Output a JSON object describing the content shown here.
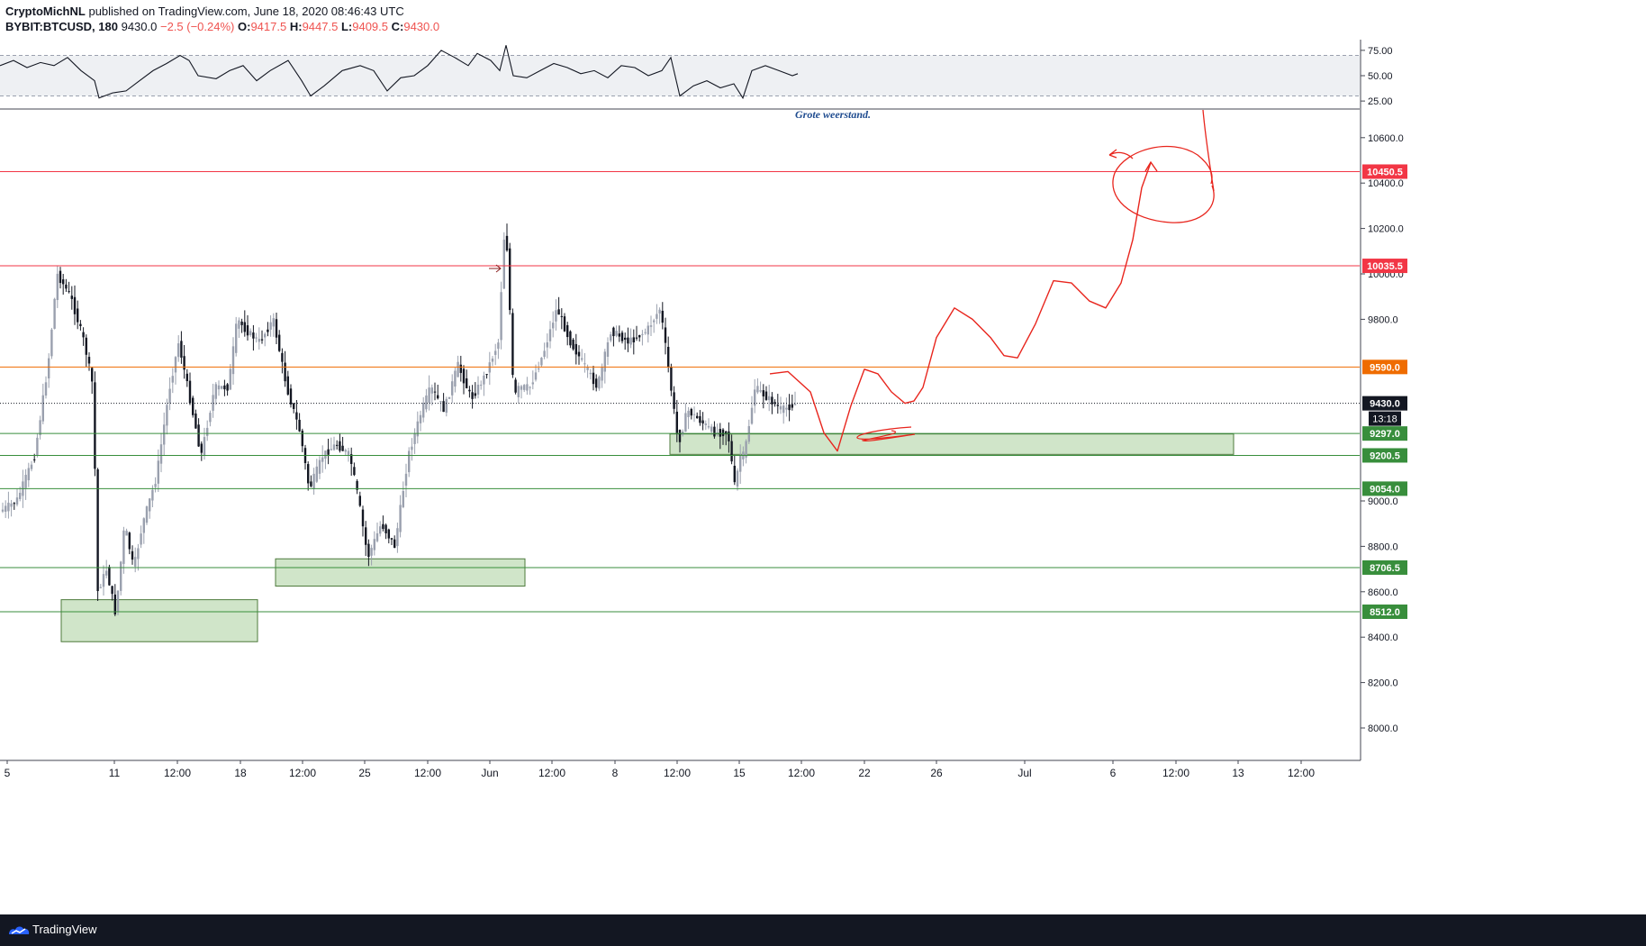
{
  "header": {
    "publisher": "CryptoMichNL",
    "published_text": "published on TradingView.com, June 18, 2020 08:46:43 UTC",
    "symbol": "BYBIT:BTCUSD, 180",
    "last": "9430.0",
    "change": "−2.5 (−0.24%)",
    "open_label": "O:",
    "open": "9417.5",
    "high_label": "H:",
    "high": "9447.5",
    "low_label": "L:",
    "low": "9409.5",
    "close_label": "C:",
    "close": "9430.0"
  },
  "footer": {
    "brand": "TradingView"
  },
  "colors": {
    "resistance": "#f23645",
    "support": "#388e3c",
    "pivot": "#ef6c00",
    "zone_fill": "#c8e0c0",
    "zone_stroke": "#4e7a3c",
    "drawing": "#e8251d",
    "annotation_text": "#1e4b8f",
    "candle_dark": "#131722",
    "candle_light": "#9aa0ae",
    "current_badge": "#131722"
  },
  "chart_data": [
    {
      "type": "line",
      "name": "RSI",
      "yticks": [
        25,
        50,
        75
      ],
      "ytick_labels": [
        "25.00",
        "50.00",
        "75.00"
      ],
      "band": [
        30,
        70
      ],
      "ylim": [
        18,
        82
      ],
      "x": [
        0,
        15,
        30,
        45,
        60,
        75,
        90,
        105,
        110,
        125,
        140,
        155,
        170,
        185,
        200,
        210,
        220,
        240,
        255,
        270,
        285,
        300,
        320,
        335,
        345,
        360,
        380,
        400,
        415,
        430,
        445,
        460,
        475,
        490,
        505,
        520,
        530,
        545,
        555,
        562,
        570,
        585,
        600,
        615,
        630,
        645,
        660,
        675,
        690,
        705,
        720,
        735,
        745,
        755,
        770,
        785,
        800,
        815,
        825,
        835,
        850,
        865,
        880,
        886
      ],
      "values": [
        60,
        65,
        58,
        63,
        60,
        68,
        55,
        45,
        28,
        33,
        35,
        45,
        55,
        62,
        70,
        65,
        50,
        47,
        55,
        60,
        45,
        55,
        65,
        45,
        30,
        40,
        55,
        60,
        55,
        35,
        48,
        50,
        60,
        75,
        68,
        60,
        72,
        65,
        55,
        80,
        50,
        48,
        55,
        62,
        58,
        52,
        55,
        48,
        60,
        58,
        50,
        55,
        68,
        30,
        40,
        45,
        38,
        42,
        28,
        55,
        60,
        55,
        50,
        52
      ]
    },
    {
      "type": "candlestick",
      "name": "BYBIT:BTCUSD, 180",
      "ylim": [
        7900,
        10760
      ],
      "yticks": [
        8000,
        8200,
        8400,
        8600,
        8800,
        9000,
        9200,
        9400,
        9600,
        9800,
        10000,
        10200,
        10400,
        10600
      ],
      "ytick_labels": [
        "8000.0",
        "8200.0",
        "8400.0",
        "8600.0",
        "8800.0",
        "9000.0",
        "",
        "",
        "",
        "9800.0",
        "10000.0",
        "10200.0",
        "10400.0",
        "10600.0"
      ],
      "xticks": [
        {
          "x": 8,
          "label": "5"
        },
        {
          "x": 127,
          "label": "11"
        },
        {
          "x": 197,
          "label": "12:00"
        },
        {
          "x": 267,
          "label": "18"
        },
        {
          "x": 336,
          "label": "12:00"
        },
        {
          "x": 405,
          "label": "25"
        },
        {
          "x": 475,
          "label": "12:00"
        },
        {
          "x": 544,
          "label": "Jun"
        },
        {
          "x": 613,
          "label": "12:00"
        },
        {
          "x": 683,
          "label": "8"
        },
        {
          "x": 752,
          "label": "12:00"
        },
        {
          "x": 821,
          "label": "15"
        },
        {
          "x": 890,
          "label": "12:00"
        },
        {
          "x": 960,
          "label": "22"
        },
        {
          "x": 1040,
          "label": "26"
        },
        {
          "x": 1138,
          "label": "Jul"
        },
        {
          "x": 1236,
          "label": "6"
        },
        {
          "x": 1306,
          "label": "12:00"
        },
        {
          "x": 1375,
          "label": "13"
        },
        {
          "x": 1445,
          "label": "12:00"
        }
      ],
      "price_path_x": [
        0,
        20,
        40,
        55,
        65,
        80,
        95,
        105,
        110,
        120,
        130,
        140,
        150,
        160,
        175,
        190,
        200,
        215,
        225,
        240,
        255,
        265,
        275,
        290,
        305,
        320,
        335,
        345,
        360,
        375,
        390,
        400,
        410,
        425,
        440,
        455,
        470,
        480,
        495,
        510,
        525,
        540,
        555,
        562,
        565,
        572,
        578,
        590,
        605,
        620,
        635,
        650,
        665,
        680,
        700,
        720,
        735,
        745,
        755,
        765,
        780,
        795,
        810,
        818,
        823,
        828,
        840,
        855,
        870,
        886
      ],
      "price_path_y": [
        8950,
        9000,
        9200,
        9600,
        10000,
        9900,
        9700,
        9500,
        8600,
        8700,
        8500,
        8900,
        8700,
        8900,
        9100,
        9500,
        9700,
        9400,
        9200,
        9500,
        9500,
        9800,
        9750,
        9700,
        9800,
        9500,
        9300,
        9050,
        9200,
        9250,
        9200,
        9000,
        8750,
        8900,
        8800,
        9200,
        9400,
        9500,
        9400,
        9600,
        9450,
        9550,
        9700,
        10200,
        10100,
        9450,
        9500,
        9500,
        9650,
        9850,
        9700,
        9600,
        9500,
        9750,
        9700,
        9750,
        9850,
        9550,
        9250,
        9400,
        9350,
        9300,
        9300,
        9050,
        9200,
        9200,
        9500,
        9450,
        9400,
        9430
      ],
      "annotation": "Grote weerstand.",
      "levels": [
        {
          "price": 10450.5,
          "label": "10450.5",
          "kind": "resistance"
        },
        {
          "price": 10035.5,
          "label": "10035.5",
          "kind": "resistance"
        },
        {
          "price": 9590.0,
          "label": "9590.0",
          "kind": "pivot"
        },
        {
          "price": 9297.0,
          "label": "9297.0",
          "kind": "support"
        },
        {
          "price": 9200.5,
          "label": "9200.5",
          "kind": "support"
        },
        {
          "price": 9054.0,
          "label": "9054.0",
          "kind": "support"
        },
        {
          "price": 8706.5,
          "label": "8706.5",
          "kind": "support"
        },
        {
          "price": 8512.0,
          "label": "8512.0",
          "kind": "support"
        }
      ],
      "current": {
        "price": 9430.0,
        "label": "9430.0",
        "countdown": "13:18"
      },
      "zones": [
        {
          "x1": 68,
          "x2": 286,
          "y1": 8380,
          "y2": 8565
        },
        {
          "x1": 306,
          "x2": 583,
          "y1": 8625,
          "y2": 8745
        },
        {
          "x1": 744,
          "x2": 1370,
          "y1": 9205,
          "y2": 9295
        }
      ],
      "forecast_path_x": [
        855,
        875,
        900,
        915,
        930,
        945,
        960,
        975,
        990,
        1005,
        1015,
        1025,
        1040,
        1060,
        1080,
        1100,
        1115,
        1130,
        1150,
        1170,
        1190,
        1210,
        1228,
        1245,
        1258,
        1268,
        1278
      ],
      "forecast_path_y": [
        9560,
        9570,
        9480,
        9300,
        9220,
        9420,
        9580,
        9560,
        9480,
        9430,
        9440,
        9500,
        9720,
        9850,
        9800,
        9720,
        9640,
        9630,
        9780,
        9970,
        9960,
        9880,
        9850,
        9960,
        10150,
        10380,
        10490
      ],
      "circle": {
        "cx": 1296,
        "cy": 10340,
        "rx": 45,
        "ry": 200
      }
    }
  ]
}
